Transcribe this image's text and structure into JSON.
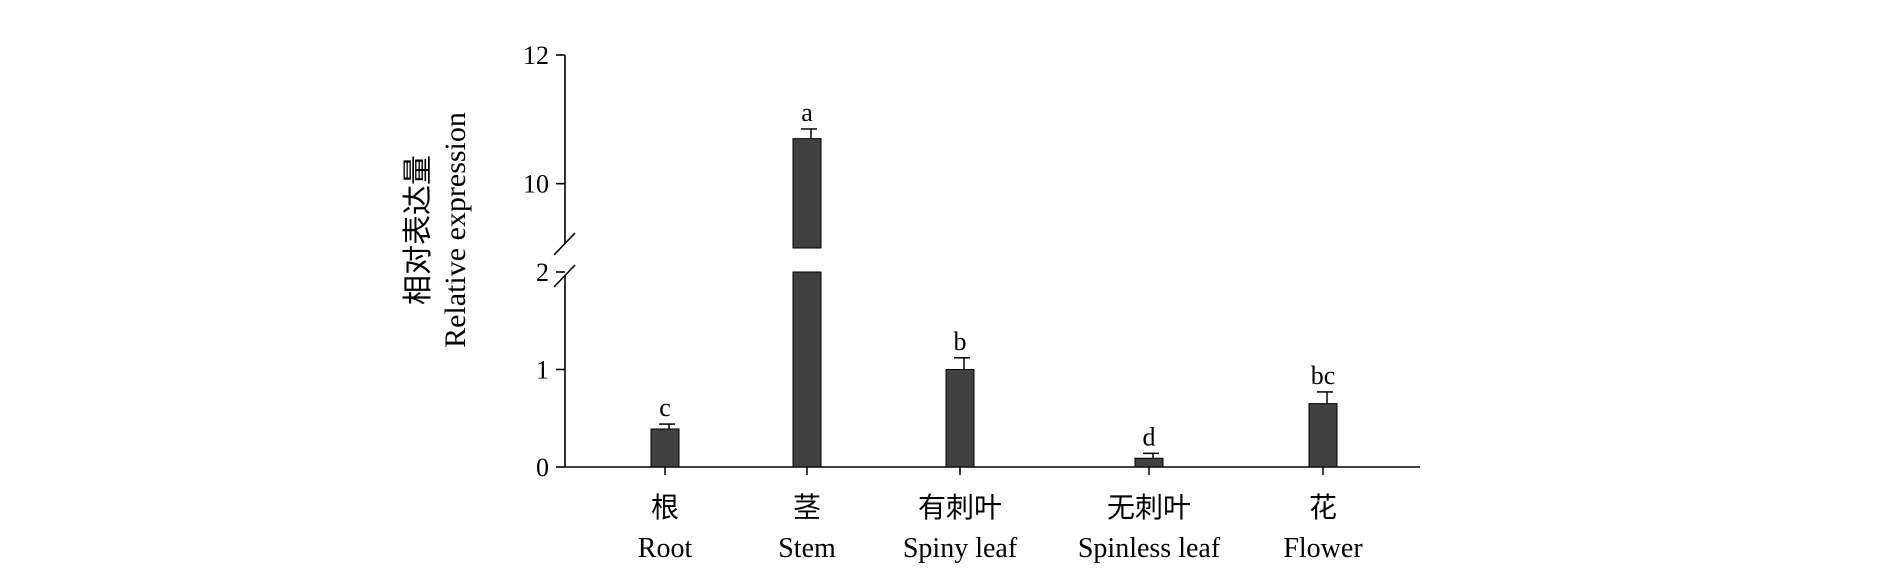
{
  "chart_data": {
    "type": "bar",
    "ylabel_cn": "相对表达量",
    "ylabel_en": "Relative expression",
    "categories": [
      {
        "cn": "根",
        "en": "Root"
      },
      {
        "cn": "茎",
        "en": "Stem"
      },
      {
        "cn": "有刺叶",
        "en": "Spiny leaf"
      },
      {
        "cn": "无刺叶",
        "en": "Spinless leaf"
      },
      {
        "cn": "花",
        "en": "Flower"
      }
    ],
    "values": [
      0.39,
      10.7,
      1.0,
      0.09,
      0.65
    ],
    "errors": [
      0.05,
      0.15,
      0.12,
      0.05,
      0.12
    ],
    "significance": [
      "c",
      "a",
      "b",
      "d",
      "bc"
    ],
    "y_axis_break": {
      "lower_range": [
        0,
        2
      ],
      "upper_range": [
        9,
        12
      ]
    },
    "yticks_lower": [
      0,
      1,
      2
    ],
    "yticks_upper": [
      10,
      12
    ],
    "bar_color": "#404040",
    "grid": false
  }
}
